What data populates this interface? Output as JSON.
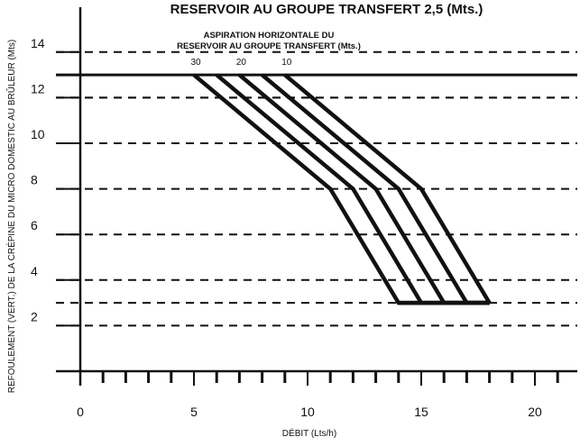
{
  "chart_data": {
    "type": "line",
    "title": "RESERVOIR AU GROUPE TRANSFERT 2,5 (Mts.)",
    "xlabel": "DÉBIT (Lts/h)",
    "ylabel": "REFOULEMENT (VERT.) DE LA CRÉPINE DU MICRO DOMESTIC AU BRÛLEUR (Mts)",
    "xlim": [
      0,
      21.5
    ],
    "ylim": [
      -0.5,
      16
    ],
    "xticks": [
      "0",
      "5",
      "10",
      "15",
      "20"
    ],
    "xtick_values": [
      0,
      5,
      10,
      15,
      20
    ],
    "yticks": [
      "2",
      "4",
      "6",
      "8",
      "10",
      "12",
      "14"
    ],
    "ytick_values": [
      2,
      4,
      6,
      8,
      10,
      12,
      14
    ],
    "x_minor_ticks": [
      1,
      2,
      3,
      4,
      6,
      7,
      8,
      9,
      11,
      12,
      13,
      14,
      16,
      17,
      18,
      19,
      21
    ],
    "grid": "horizontal dashed",
    "max_line": 13,
    "annotation": {
      "line1": "ASPIRATION HORIZONTALE DU",
      "line2": "RESERVOIR AU GROUPE TRANSFERT (Mts.)"
    },
    "series_labels": [
      "30",
      "20",
      "10"
    ],
    "series": [
      {
        "name": "30",
        "x": [
          5,
          11,
          14,
          18
        ],
        "y": [
          13,
          8,
          3,
          3
        ]
      },
      {
        "x": [
          6,
          12,
          15,
          18
        ],
        "y": [
          13,
          8,
          3,
          3
        ]
      },
      {
        "name": "20",
        "x": [
          7,
          13,
          16,
          18
        ],
        "y": [
          13,
          8,
          3,
          3
        ]
      },
      {
        "x": [
          8,
          14,
          17,
          18
        ],
        "y": [
          13,
          8,
          3,
          3
        ]
      },
      {
        "name": "10",
        "x": [
          9,
          15,
          18
        ],
        "y": [
          13,
          8,
          3
        ]
      }
    ],
    "colors": {
      "line": "#111111",
      "background": "#ffffff"
    }
  }
}
